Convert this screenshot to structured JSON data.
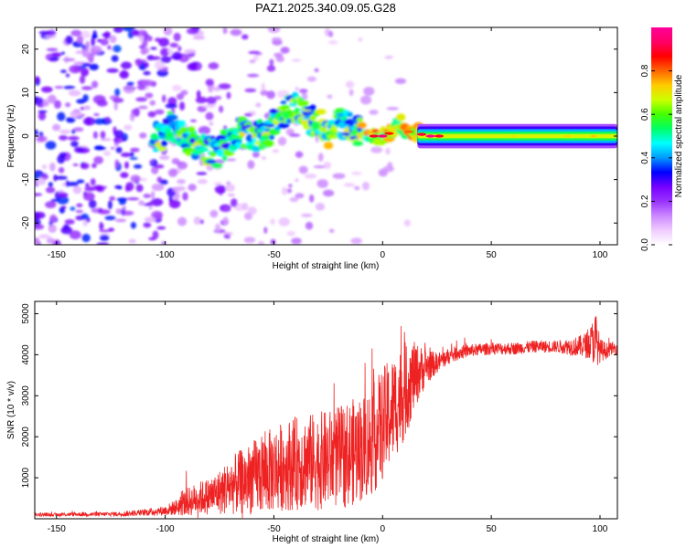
{
  "title": "PAZ1.2025.340.09.05.G28",
  "chart_data": [
    {
      "type": "heatmap",
      "name": "Spectrogram of received signal vs. height",
      "xlabel": "Height of straight line (km)",
      "ylabel": "Frequency (Hz)",
      "xlim": [
        -160,
        108
      ],
      "ylim": [
        -25,
        25
      ],
      "xticks": [
        -150,
        -100,
        -50,
        0,
        50,
        100
      ],
      "yticks": [
        -20,
        -10,
        0,
        10,
        20
      ],
      "colorbar": {
        "label": "Normalized spectral amplitude",
        "range": [
          0.0,
          1.0
        ],
        "ticks": [
          0.0,
          0.2,
          0.4,
          0.6,
          0.8
        ],
        "colormap": [
          "#ffffff",
          "#f0ccff",
          "#cc88ff",
          "#9933ff",
          "#7700ff",
          "#0000ff",
          "#0099ff",
          "#00ffff",
          "#00ff66",
          "#44ff00",
          "#ccff00",
          "#ffcc00",
          "#ff6600",
          "#ff0000",
          "#ff0066",
          "#ff0099"
        ]
      },
      "ridge": [
        {
          "x": -100,
          "f": 3
        },
        {
          "x": -95,
          "f": 1
        },
        {
          "x": -90,
          "f": -1
        },
        {
          "x": -85,
          "f": -2
        },
        {
          "x": -80,
          "f": -3
        },
        {
          "x": -75,
          "f": -4
        },
        {
          "x": -70,
          "f": 0
        },
        {
          "x": -65,
          "f": 1
        },
        {
          "x": -60,
          "f": 0
        },
        {
          "x": -55,
          "f": 0
        },
        {
          "x": -50,
          "f": 3
        },
        {
          "x": -45,
          "f": 5
        },
        {
          "x": -40,
          "f": 7
        },
        {
          "x": -35,
          "f": 4
        },
        {
          "x": -30,
          "f": 3
        },
        {
          "x": -25,
          "f": 1
        },
        {
          "x": -20,
          "f": 3
        },
        {
          "x": -15,
          "f": 2
        },
        {
          "x": -10,
          "f": 1
        },
        {
          "x": -5,
          "f": 0
        },
        {
          "x": 0,
          "f": 0
        },
        {
          "x": 5,
          "f": 1
        },
        {
          "x": 8,
          "f": 3
        },
        {
          "x": 12,
          "f": 1
        },
        {
          "x": 15,
          "f": 1
        },
        {
          "x": 20,
          "f": 0
        },
        {
          "x": 108,
          "f": 0
        }
      ],
      "steady_band": {
        "x_start": 20,
        "x_end": 108,
        "f": 0
      }
    },
    {
      "type": "line",
      "name": "SNR vs. height",
      "xlabel": "Height of straight line (km)",
      "ylabel": "SNR (10 * v/v)",
      "xlim": [
        -160,
        108
      ],
      "ylim": [
        0,
        5300
      ],
      "xticks": [
        -150,
        -100,
        -50,
        0,
        50,
        100
      ],
      "yticks": [
        1000,
        2000,
        3000,
        4000,
        5000
      ],
      "color": "#ee2222",
      "series": [
        {
          "name": "SNR",
          "x": [
            -160,
            -150,
            -140,
            -130,
            -120,
            -110,
            -100,
            -95,
            -90,
            -85,
            -80,
            -75,
            -70,
            -65,
            -60,
            -55,
            -50,
            -45,
            -40,
            -35,
            -30,
            -25,
            -20,
            -15,
            -10,
            -5,
            0,
            5,
            10,
            12,
            15,
            20,
            25,
            30,
            35,
            40,
            50,
            60,
            70,
            80,
            90,
            95,
            98,
            100,
            103,
            105,
            108
          ],
          "values": [
            100,
            100,
            110,
            110,
            120,
            150,
            200,
            280,
            400,
            500,
            550,
            650,
            800,
            900,
            1000,
            1100,
            1200,
            1300,
            1350,
            1400,
            1400,
            1450,
            1500,
            1600,
            1700,
            1900,
            2300,
            2700,
            3100,
            3300,
            3500,
            3700,
            3800,
            3950,
            4050,
            4100,
            4150,
            4150,
            4200,
            4200,
            4200,
            4250,
            4400,
            4100,
            4100,
            4150,
            4150
          ],
          "noise_amplitude": [
            40,
            40,
            50,
            50,
            60,
            80,
            120,
            200,
            350,
            400,
            450,
            550,
            700,
            800,
            900,
            1000,
            1050,
            1100,
            1150,
            1150,
            1200,
            1200,
            1250,
            1300,
            1300,
            1350,
            1400,
            1300,
            1200,
            1100,
            800,
            450,
            250,
            200,
            180,
            150,
            150,
            150,
            150,
            150,
            250,
            350,
            700,
            300,
            200,
            150,
            150
          ]
        }
      ]
    }
  ]
}
